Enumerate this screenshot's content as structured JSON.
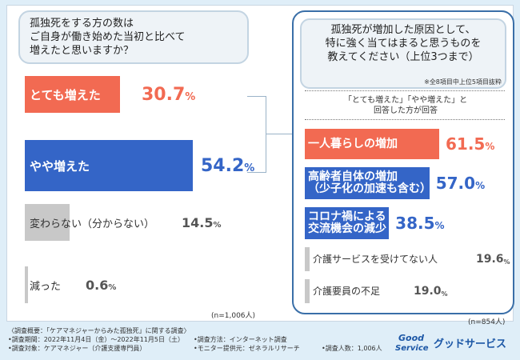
{
  "left": {
    "question": "孤独死をする方の数は\nご自身が働き始めた当初と比べて\n増えたと思いますか？",
    "n_note": "(n=1,006人)"
  },
  "right": {
    "question": "孤独死が増加した原因として、\n特に強く当てはまると思うものを\n教えてください（上位3つまで）",
    "sub_note": "※全8項目中上位5項目抜粋",
    "answer_note": "「とても増えた」「やや増えた」と\n回答した方が回答",
    "n_note": "(n=854人)"
  },
  "footer": {
    "overview": "〈調査概要：「ケアマネジャーからみた孤独死」に関する調査〉",
    "period": "•調査期間：2022年11月4日（金）～2022年11月5日（土）",
    "method": "•調査方法：インターネット調査",
    "target": "•調査対象：ケアマネジャー（介護支援専門員）",
    "provider": "•モニター提供元：ゼネラルリサーチ",
    "count": "•調査人数：1,006人"
  },
  "logo": {
    "mark_top": "Good",
    "mark_bottom": "Service",
    "name": "グッドサービス"
  },
  "colors": {
    "red": "#f26a52",
    "blue": "#3465c7",
    "gray": "#c8c8c8",
    "value_red": "#f26a52",
    "value_blue": "#3465c7",
    "value_gray": "#555555",
    "brand": "#1c57a6"
  },
  "chart_data": [
    {
      "type": "bar",
      "orientation": "horizontal",
      "categories": [
        "とても増えた",
        "やや増えた",
        "変わらない（分からない）",
        "減った"
      ],
      "values": [
        30.7,
        54.2,
        14.5,
        0.6
      ],
      "value_labels": [
        "30.7%",
        "54.2%",
        "14.5%",
        "0.6%"
      ],
      "unit": "%"
    },
    {
      "type": "bar",
      "orientation": "horizontal",
      "categories": [
        "一人暮らしの増加",
        "高齢者自体の増加\n（少子化の加速も含む）",
        "コロナ禍による\n交流機会の減少",
        "介護サービスを受けてない人",
        "介護要員の不足"
      ],
      "values": [
        61.5,
        57.0,
        38.5,
        19.6,
        19.0
      ],
      "value_labels": [
        "61.5%",
        "57.0%",
        "38.5%",
        "19.6%",
        "19.0%"
      ],
      "unit": "%"
    }
  ]
}
